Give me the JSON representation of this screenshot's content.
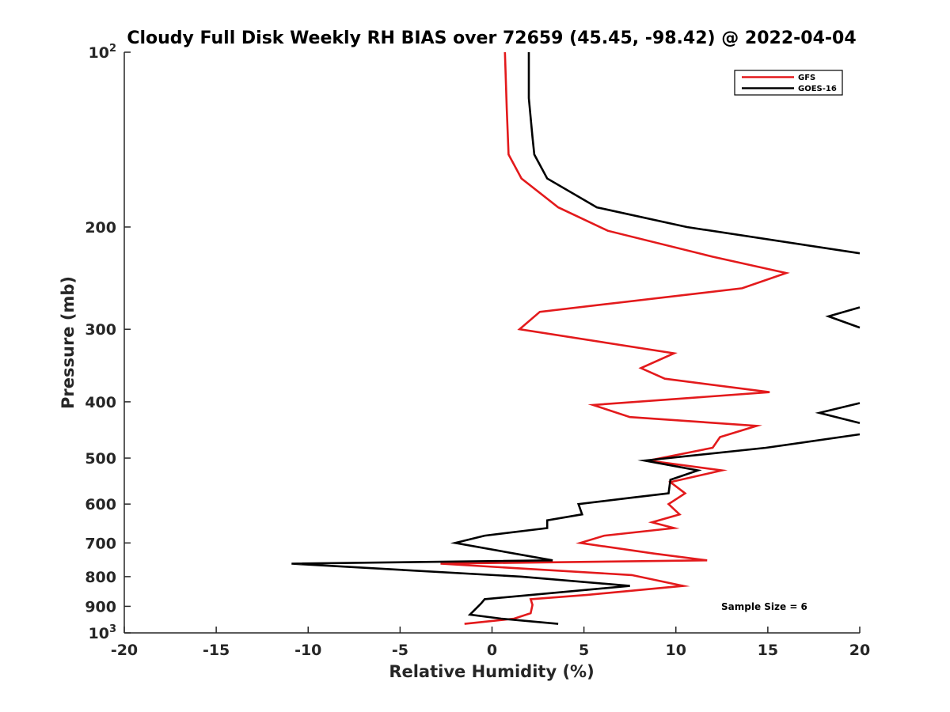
{
  "chart_data": {
    "type": "line",
    "title": "Cloudy Full Disk Weekly RH BIAS over 72659 (45.45, -98.42) @ 2022-04-04",
    "xlabel": "Relative Humidity (%)",
    "ylabel": "Pressure (mb)",
    "xlim": [
      -20,
      20
    ],
    "ylim": [
      100,
      1000
    ],
    "yscale": "log",
    "y_reversed": true,
    "grid": false,
    "legend_position": "top-right",
    "x_ticks": [
      "-20",
      "-15",
      "-10",
      "-5",
      "0",
      "5",
      "10",
      "15",
      "20"
    ],
    "y_ticks": [
      {
        "value": 100,
        "base": "10",
        "exp": "2"
      },
      {
        "value": 200,
        "label": "200"
      },
      {
        "value": 300,
        "label": "300"
      },
      {
        "value": 400,
        "label": "400"
      },
      {
        "value": 500,
        "label": "500"
      },
      {
        "value": 600,
        "label": "600"
      },
      {
        "value": 700,
        "label": "700"
      },
      {
        "value": 800,
        "label": "800"
      },
      {
        "value": 900,
        "label": "900"
      },
      {
        "value": 1000,
        "base": "10",
        "exp": "3"
      }
    ],
    "series": [
      {
        "name": "GFS",
        "color": "#e31a1c",
        "points": [
          [
            0.7,
            100
          ],
          [
            0.8,
            125
          ],
          [
            0.9,
            150
          ],
          [
            1.6,
            165
          ],
          [
            3.6,
            185
          ],
          [
            6.3,
            203
          ],
          [
            12.0,
            225
          ],
          [
            16.0,
            240
          ],
          [
            13.6,
            255
          ],
          [
            2.6,
            280
          ],
          [
            1.5,
            300
          ],
          [
            9.9,
            330
          ],
          [
            8.1,
            350
          ],
          [
            9.4,
            365
          ],
          [
            15.1,
            385
          ],
          [
            5.5,
            405
          ],
          [
            7.5,
            425
          ],
          [
            14.4,
            440
          ],
          [
            12.4,
            460
          ],
          [
            12.0,
            480
          ],
          [
            8.5,
            505
          ],
          [
            12.5,
            525
          ],
          [
            9.7,
            550
          ],
          [
            10.5,
            575
          ],
          [
            9.6,
            600
          ],
          [
            10.2,
            625
          ],
          [
            8.7,
            645
          ],
          [
            9.9,
            660
          ],
          [
            6.1,
            680
          ],
          [
            4.8,
            700
          ],
          [
            8.8,
            730
          ],
          [
            11.7,
            750
          ],
          [
            -2.8,
            760
          ],
          [
            7.6,
            795
          ],
          [
            10.4,
            830
          ],
          [
            5.2,
            860
          ],
          [
            2.1,
            875
          ],
          [
            2.2,
            895
          ],
          [
            2.1,
            925
          ],
          [
            1.2,
            945
          ],
          [
            -1.5,
            965
          ]
        ]
      },
      {
        "name": "GOES-16",
        "color": "#000000",
        "points": [
          [
            2.0,
            100
          ],
          [
            2.0,
            120
          ],
          [
            2.2,
            140
          ],
          [
            2.3,
            150
          ],
          [
            3.0,
            165
          ],
          [
            5.7,
            185
          ],
          [
            10.6,
            200
          ],
          [
            20.0,
            222
          ],
          [
            null,
            null
          ],
          [
            20.0,
            275
          ],
          [
            18.3,
            285
          ],
          [
            20.0,
            298
          ],
          [
            null,
            null
          ],
          [
            20.0,
            402
          ],
          [
            17.8,
            418
          ],
          [
            20.0,
            435
          ],
          [
            null,
            null
          ],
          [
            20.0,
            455
          ],
          [
            14.9,
            480
          ],
          [
            8.3,
            505
          ],
          [
            11.2,
            525
          ],
          [
            9.7,
            545
          ],
          [
            9.6,
            575
          ],
          [
            7.6,
            585
          ],
          [
            4.7,
            600
          ],
          [
            4.9,
            625
          ],
          [
            3.0,
            640
          ],
          [
            3.0,
            660
          ],
          [
            -0.4,
            680
          ],
          [
            -2.0,
            700
          ],
          [
            3.3,
            750
          ],
          [
            -10.9,
            760
          ],
          [
            1.6,
            800
          ],
          [
            7.5,
            830
          ],
          [
            -0.4,
            875
          ],
          [
            -0.6,
            890
          ],
          [
            -1.2,
            930
          ],
          [
            0.5,
            945
          ],
          [
            3.6,
            965
          ]
        ]
      }
    ],
    "annotations": [
      "Sample Size = 6"
    ]
  }
}
